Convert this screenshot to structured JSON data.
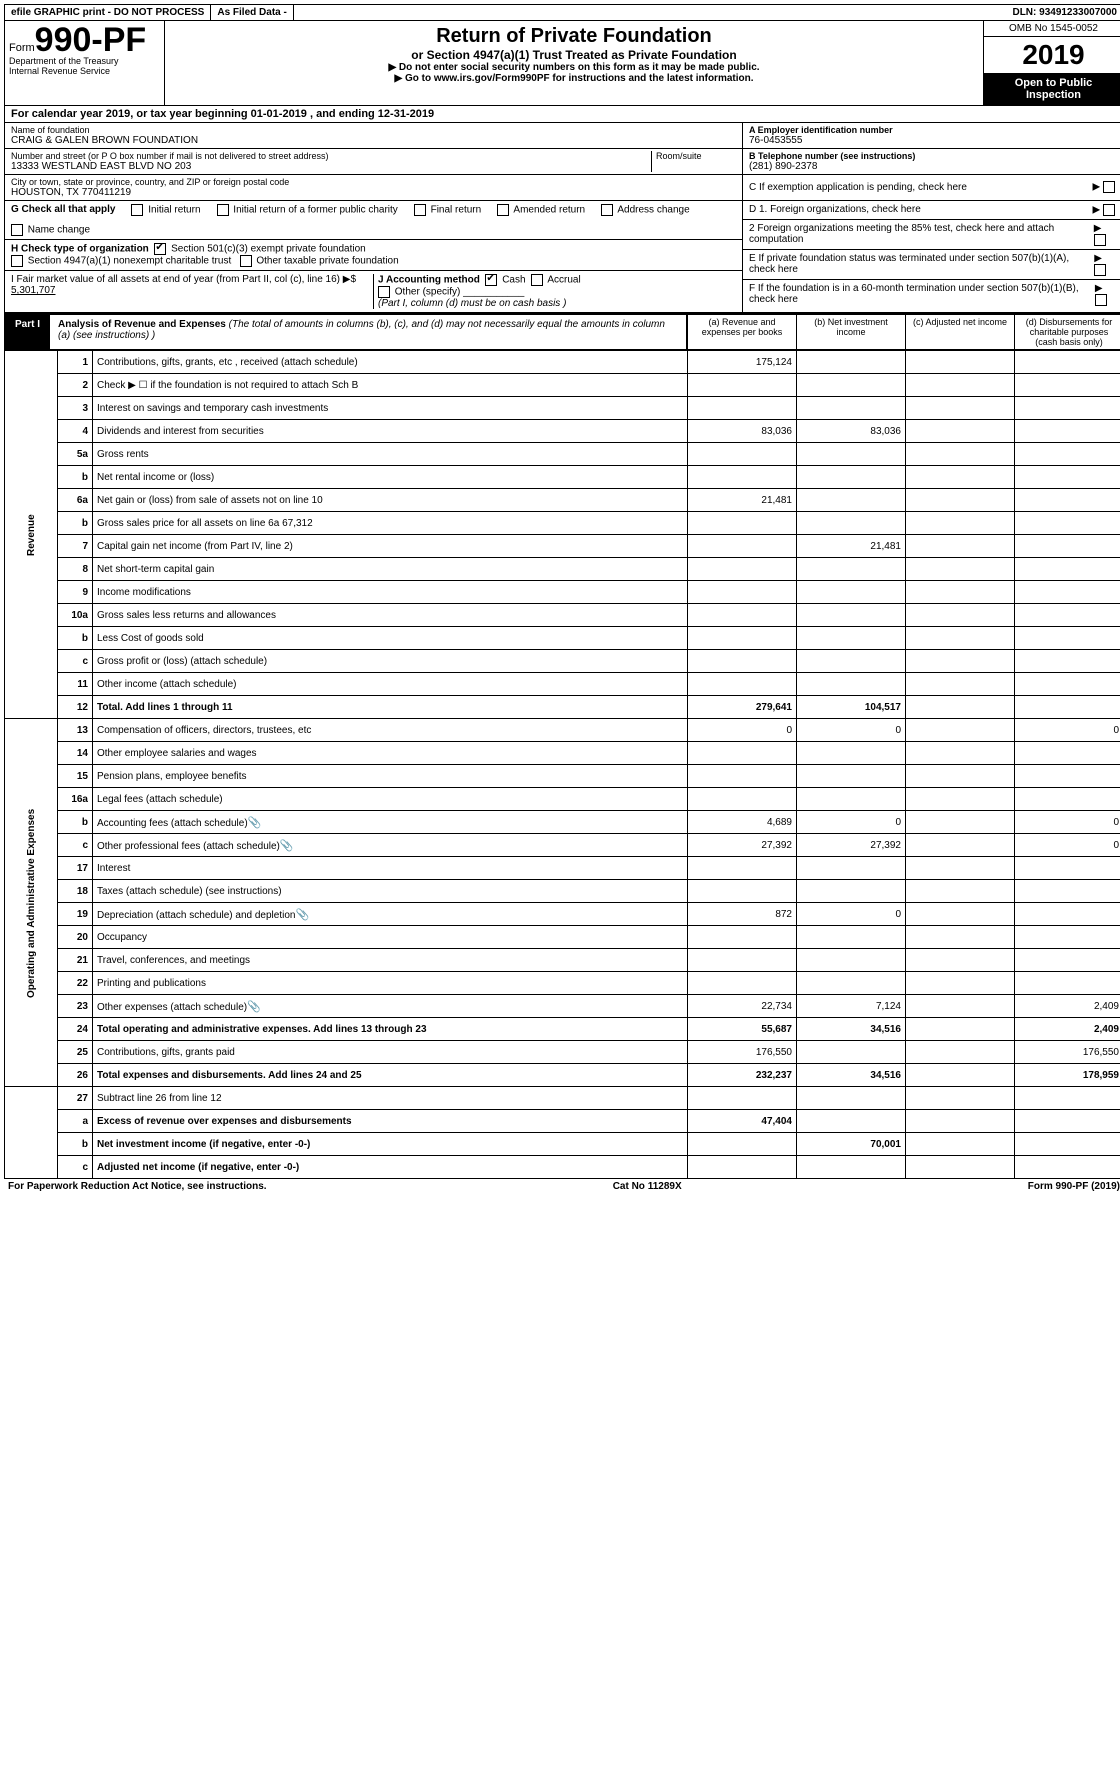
{
  "topbar": {
    "efile": "efile GRAPHIC print - DO NOT PROCESS",
    "asfiled": "As Filed Data -",
    "dln": "DLN: 93491233007000"
  },
  "header": {
    "form_prefix": "Form",
    "form_no": "990-PF",
    "dept1": "Department of the Treasury",
    "dept2": "Internal Revenue Service",
    "title": "Return of Private Foundation",
    "subtitle": "or Section 4947(a)(1) Trust Treated as Private Foundation",
    "instr1": "▶ Do not enter social security numbers on this form as it may be made public.",
    "instr2": "▶ Go to www.irs.gov/Form990PF for instructions and the latest information.",
    "omb": "OMB No 1545-0052",
    "year": "2019",
    "open": "Open to Public Inspection"
  },
  "calyear": "For calendar year 2019, or tax year beginning 01-01-2019          , and ending 12-31-2019",
  "info": {
    "name_label": "Name of foundation",
    "name": "CRAIG & GALEN BROWN FOUNDATION",
    "addr_label": "Number and street (or P O  box number if mail is not delivered to street address)",
    "addr": "13333 WESTLAND EAST BLVD NO 203",
    "room_label": "Room/suite",
    "city_label": "City or town, state or province, country, and ZIP or foreign postal code",
    "city": "HOUSTON, TX  770411219",
    "a_label": "A Employer identification number",
    "a_val": "76-0453555",
    "b_label": "B Telephone number (see instructions)",
    "b_val": "(281) 890-2378",
    "c_label": "C If exemption application is pending, check here"
  },
  "checks": {
    "g": "G Check all that apply",
    "g1": "Initial return",
    "g2": "Initial return of a former public charity",
    "g3": "Final return",
    "g4": "Amended return",
    "g5": "Address change",
    "g6": "Name change",
    "h": "H Check type of organization",
    "h1": "Section 501(c)(3) exempt private foundation",
    "h2": "Section 4947(a)(1) nonexempt charitable trust",
    "h3": "Other taxable private foundation",
    "i_label": "I Fair market value of all assets at end of year (from Part II, col  (c), line 16) ▶$",
    "i_val": "5,301,707",
    "j_label": "J Accounting method",
    "j1": "Cash",
    "j2": "Accrual",
    "j3": "Other (specify)",
    "j_note": "(Part I, column (d) must be on cash basis )",
    "d1": "D 1. Foreign organizations, check here",
    "d2": "2 Foreign organizations meeting the 85% test, check here and attach computation",
    "e": "E  If private foundation status was terminated under section 507(b)(1)(A), check here",
    "f": "F  If the foundation is in a 60-month termination under section 507(b)(1)(B), check here"
  },
  "part1": {
    "tag": "Part I",
    "title": "Analysis of Revenue and Expenses",
    "note": "(The total of amounts in columns (b), (c), and (d) may not necessarily equal the amounts in column (a) (see instructions) )",
    "col_a": "(a) Revenue and expenses per books",
    "col_b": "(b) Net investment income",
    "col_c": "(c) Adjusted net income",
    "col_d": "(d) Disbursements for charitable purposes (cash basis only)"
  },
  "side": {
    "rev": "Revenue",
    "exp": "Operating and Administrative Expenses"
  },
  "rows": {
    "r1": {
      "ln": "1",
      "desc": "Contributions, gifts, grants, etc , received (attach schedule)",
      "a": "175,124"
    },
    "r2": {
      "ln": "2",
      "desc": "Check ▶ ☐ if the foundation is not required to attach Sch B"
    },
    "r3": {
      "ln": "3",
      "desc": "Interest on savings and temporary cash investments"
    },
    "r4": {
      "ln": "4",
      "desc": "Dividends and interest from securities",
      "a": "83,036",
      "b": "83,036"
    },
    "r5a": {
      "ln": "5a",
      "desc": "Gross rents"
    },
    "r5b": {
      "ln": "b",
      "desc": "Net rental income or (loss)"
    },
    "r6a": {
      "ln": "6a",
      "desc": "Net gain or (loss) from sale of assets not on line 10",
      "a": "21,481"
    },
    "r6b": {
      "ln": "b",
      "desc": "Gross sales price for all assets on line 6a           67,312"
    },
    "r7": {
      "ln": "7",
      "desc": "Capital gain net income (from Part IV, line 2)",
      "b": "21,481"
    },
    "r8": {
      "ln": "8",
      "desc": "Net short-term capital gain"
    },
    "r9": {
      "ln": "9",
      "desc": "Income modifications"
    },
    "r10a": {
      "ln": "10a",
      "desc": "Gross sales less returns and allowances"
    },
    "r10b": {
      "ln": "b",
      "desc": "Less  Cost of goods sold"
    },
    "r10c": {
      "ln": "c",
      "desc": "Gross profit or (loss) (attach schedule)"
    },
    "r11": {
      "ln": "11",
      "desc": "Other income (attach schedule)"
    },
    "r12": {
      "ln": "12",
      "desc": "Total. Add lines 1 through 11",
      "a": "279,641",
      "b": "104,517"
    },
    "r13": {
      "ln": "13",
      "desc": "Compensation of officers, directors, trustees, etc",
      "a": "0",
      "b": "0",
      "d": "0"
    },
    "r14": {
      "ln": "14",
      "desc": "Other employee salaries and wages"
    },
    "r15": {
      "ln": "15",
      "desc": "Pension plans, employee benefits"
    },
    "r16a": {
      "ln": "16a",
      "desc": "Legal fees (attach schedule)"
    },
    "r16b": {
      "ln": "b",
      "desc": "Accounting fees (attach schedule)",
      "icon": true,
      "a": "4,689",
      "b": "0",
      "d": "0"
    },
    "r16c": {
      "ln": "c",
      "desc": "Other professional fees (attach schedule)",
      "icon": true,
      "a": "27,392",
      "b": "27,392",
      "d": "0"
    },
    "r17": {
      "ln": "17",
      "desc": "Interest"
    },
    "r18": {
      "ln": "18",
      "desc": "Taxes (attach schedule) (see instructions)"
    },
    "r19": {
      "ln": "19",
      "desc": "Depreciation (attach schedule) and depletion",
      "icon": true,
      "a": "872",
      "b": "0"
    },
    "r20": {
      "ln": "20",
      "desc": "Occupancy"
    },
    "r21": {
      "ln": "21",
      "desc": "Travel, conferences, and meetings"
    },
    "r22": {
      "ln": "22",
      "desc": "Printing and publications"
    },
    "r23": {
      "ln": "23",
      "desc": "Other expenses (attach schedule)",
      "icon": true,
      "a": "22,734",
      "b": "7,124",
      "d": "2,409"
    },
    "r24": {
      "ln": "24",
      "desc": "Total operating and administrative expenses. Add lines 13 through 23",
      "a": "55,687",
      "b": "34,516",
      "d": "2,409"
    },
    "r25": {
      "ln": "25",
      "desc": "Contributions, gifts, grants paid",
      "a": "176,550",
      "d": "176,550"
    },
    "r26": {
      "ln": "26",
      "desc": "Total expenses and disbursements. Add lines 24 and 25",
      "a": "232,237",
      "b": "34,516",
      "d": "178,959"
    },
    "r27": {
      "ln": "27",
      "desc": "Subtract line 26 from line 12"
    },
    "r27a": {
      "ln": "a",
      "desc": "Excess of revenue over expenses and disbursements",
      "a": "47,404"
    },
    "r27b": {
      "ln": "b",
      "desc": "Net investment income (if negative, enter -0-)",
      "b": "70,001"
    },
    "r27c": {
      "ln": "c",
      "desc": "Adjusted net income (if negative, enter -0-)"
    }
  },
  "footer": {
    "left": "For Paperwork Reduction Act Notice, see instructions.",
    "mid": "Cat No  11289X",
    "right": "Form 990-PF (2019)"
  }
}
